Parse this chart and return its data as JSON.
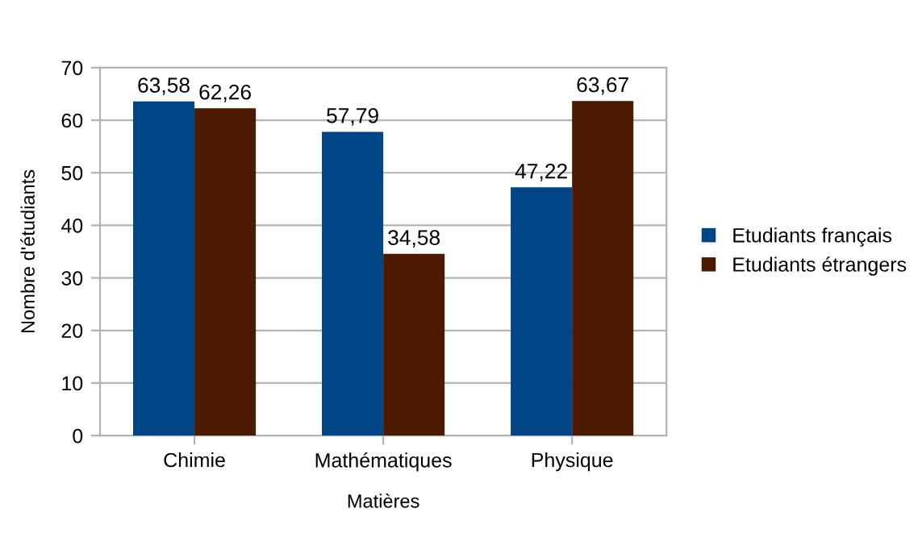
{
  "chart_data": {
    "type": "bar",
    "xlabel": "Matières",
    "ylabel": "Nombre d'étudiants",
    "categories": [
      "Chimie",
      "Mathématiques",
      "Physique"
    ],
    "series": [
      {
        "name": "Etudiants français",
        "color": "#004586",
        "values": [
          63.58,
          57.79,
          47.22
        ],
        "value_labels": [
          "63,58",
          "57,79",
          "47,22"
        ]
      },
      {
        "name": "Etudiants étrangers",
        "color": "#4b1a00",
        "values": [
          62.26,
          34.58,
          63.67
        ],
        "value_labels": [
          "62,26",
          "34,58",
          "63,67"
        ]
      }
    ],
    "ylim": [
      0,
      70
    ],
    "yticks": [
      0,
      10,
      20,
      30,
      40,
      50,
      60,
      70
    ],
    "grid": "y",
    "legend": "right"
  }
}
